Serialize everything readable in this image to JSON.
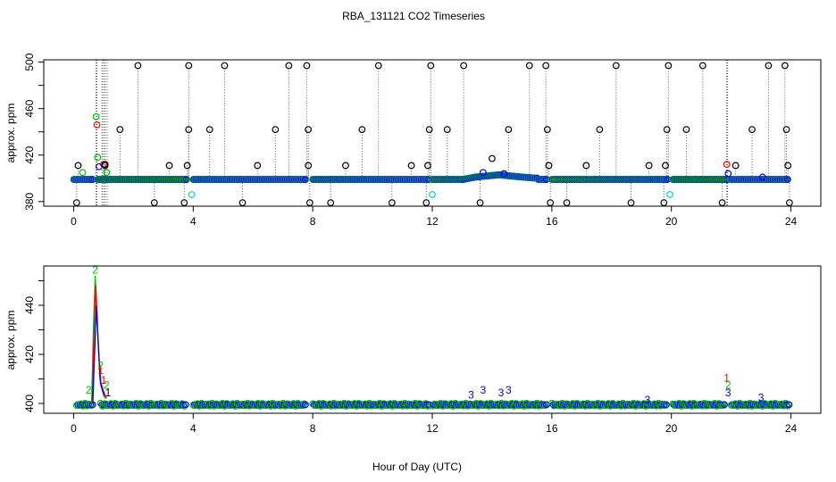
{
  "figure": {
    "title": "RBA_131121  CO2 Timeseries",
    "xlabel": "Hour of Day (UTC)"
  },
  "colors": {
    "black": "#000000",
    "red": "#ff0000",
    "green": "#00c000",
    "blue": "#0000ff",
    "cyan": "#00d0d0",
    "dotted_line": "#555555"
  },
  "chart_data": [
    {
      "type": "scatter",
      "name": "top-panel",
      "ylabel": "approx. ppm",
      "xlim": [
        -1,
        25
      ],
      "ylim": [
        376,
        502
      ],
      "xticks": [
        0,
        4,
        8,
        12,
        16,
        20,
        24
      ],
      "yticks": [
        380,
        420,
        460,
        500
      ],
      "yticks_minor": [
        400,
        440,
        480
      ],
      "baseline_segments": [
        [
          0,
          0.65
        ],
        [
          0.8,
          3.75
        ],
        [
          4.0,
          7.75
        ],
        [
          8.0,
          11.9
        ],
        [
          12.0,
          15.8
        ],
        [
          16.0,
          19.85
        ],
        [
          20.05,
          21.85
        ],
        [
          22.0,
          23.9
        ]
      ],
      "baseline_value": 399,
      "bump_13_15": [
        [
          13.0,
          399
        ],
        [
          13.4,
          401
        ],
        [
          13.8,
          402
        ],
        [
          14.2,
          403
        ],
        [
          14.6,
          402
        ],
        [
          15.0,
          401
        ],
        [
          15.5,
          400
        ]
      ],
      "spikes_black_high": [
        2.15,
        3.85,
        5.05,
        7.2,
        7.8,
        10.2,
        11.95,
        13.05,
        15.25,
        15.8,
        18.15,
        19.9,
        21.05,
        23.25,
        23.8
      ],
      "spikes_black_mid": [
        1.55,
        3.85,
        4.55,
        6.75,
        7.85,
        9.65,
        11.9,
        12.5,
        14.55,
        15.85,
        17.6,
        19.85,
        20.5,
        22.7,
        23.85
      ],
      "spikes_black_low": [
        0.15,
        1.05,
        3.2,
        3.8,
        6.15,
        7.85,
        9.1,
        11.3,
        11.85,
        15.9,
        17.15,
        19.25,
        19.8,
        22.15,
        23.9
      ],
      "dips_black": [
        0.1,
        2.7,
        3.7,
        5.65,
        7.9,
        8.6,
        10.65,
        11.8,
        13.6,
        15.95,
        16.5,
        18.65,
        19.75,
        21.7,
        23.95
      ],
      "extra_points": [
        {
          "x": 0.75,
          "y": 453,
          "c": "green"
        },
        {
          "x": 0.78,
          "y": 446,
          "c": "red"
        },
        {
          "x": 0.8,
          "y": 418,
          "c": "green"
        },
        {
          "x": 1.0,
          "y": 412,
          "c": "red"
        },
        {
          "x": 1.05,
          "y": 412,
          "c": "black"
        },
        {
          "x": 0.85,
          "y": 410,
          "c": "blue"
        },
        {
          "x": 1.1,
          "y": 405,
          "c": "green"
        },
        {
          "x": 0.3,
          "y": 405,
          "c": "green"
        },
        {
          "x": 3.95,
          "y": 386,
          "c": "cyan"
        },
        {
          "x": 12.0,
          "y": 386,
          "c": "cyan"
        },
        {
          "x": 19.95,
          "y": 386,
          "c": "cyan"
        },
        {
          "x": 14.0,
          "y": 417,
          "c": "black"
        },
        {
          "x": 13.7,
          "y": 405,
          "c": "blue"
        },
        {
          "x": 14.4,
          "y": 404,
          "c": "blue"
        },
        {
          "x": 21.85,
          "y": 412,
          "c": "red"
        },
        {
          "x": 21.9,
          "y": 404,
          "c": "blue"
        },
        {
          "x": 23.05,
          "y": 401,
          "c": "blue"
        }
      ],
      "vlines_full": [
        0.75,
        0.78,
        0.95,
        1.0,
        1.05,
        1.12,
        21.85,
        21.88
      ]
    },
    {
      "type": "line",
      "name": "bottom-panel",
      "ylabel": "approx. ppm",
      "xlim": [
        -1,
        25
      ],
      "ylim": [
        396,
        456
      ],
      "xticks": [
        0,
        4,
        8,
        12,
        16,
        20,
        24
      ],
      "yticks": [
        400,
        420,
        440
      ],
      "yticks_minor": [
        410,
        430,
        450
      ],
      "segments": [
        [
          0.1,
          0.65
        ],
        [
          0.9,
          3.75
        ],
        [
          4.0,
          7.75
        ],
        [
          8.0,
          11.9
        ],
        [
          12.0,
          15.8
        ],
        [
          16.0,
          19.85
        ],
        [
          20.05,
          21.8
        ],
        [
          22.0,
          23.9
        ]
      ],
      "baseline_value": 399.5,
      "peak_series": [
        {
          "c": "green",
          "points": [
            [
              0.6,
              400
            ],
            [
              0.66,
              430
            ],
            [
              0.72,
              452
            ],
            [
              0.78,
              438
            ],
            [
              0.84,
              420
            ],
            [
              0.92,
              407
            ],
            [
              1.05,
              402
            ]
          ]
        },
        {
          "c": "red",
          "points": [
            [
              0.62,
              400
            ],
            [
              0.68,
              428
            ],
            [
              0.74,
              448
            ],
            [
              0.8,
              430
            ],
            [
              0.88,
              410
            ],
            [
              1.0,
              405
            ],
            [
              1.1,
              402
            ]
          ]
        },
        {
          "c": "blue",
          "points": [
            [
              0.64,
              400
            ],
            [
              0.7,
              420
            ],
            [
              0.76,
              440
            ],
            [
              0.82,
              425
            ],
            [
              0.9,
              408
            ],
            [
              1.02,
              403
            ]
          ]
        }
      ],
      "numeric_markers": [
        {
          "x": 0.5,
          "y": 404,
          "t": "2",
          "c": "green"
        },
        {
          "x": 0.72,
          "y": 453,
          "t": "2",
          "c": "green"
        },
        {
          "x": 0.9,
          "y": 414,
          "t": "2",
          "c": "green"
        },
        {
          "x": 0.9,
          "y": 412,
          "t": "1",
          "c": "red"
        },
        {
          "x": 1.0,
          "y": 408,
          "t": "1",
          "c": "red"
        },
        {
          "x": 1.1,
          "y": 406,
          "t": "2",
          "c": "green"
        },
        {
          "x": 1.15,
          "y": 403,
          "t": "1",
          "c": "black"
        },
        {
          "x": 13.3,
          "y": 402,
          "t": "3",
          "c": "blue"
        },
        {
          "x": 13.7,
          "y": 404,
          "t": "3",
          "c": "blue"
        },
        {
          "x": 14.3,
          "y": 403,
          "t": "3",
          "c": "blue"
        },
        {
          "x": 14.55,
          "y": 404,
          "t": "3",
          "c": "blue"
        },
        {
          "x": 21.85,
          "y": 409,
          "t": "1",
          "c": "red"
        },
        {
          "x": 21.9,
          "y": 406,
          "t": "2",
          "c": "green"
        },
        {
          "x": 21.9,
          "y": 403,
          "t": "3",
          "c": "blue"
        },
        {
          "x": 19.2,
          "y": 400,
          "t": "3",
          "c": "blue"
        },
        {
          "x": 23.0,
          "y": 401,
          "t": "3",
          "c": "blue"
        }
      ]
    }
  ]
}
